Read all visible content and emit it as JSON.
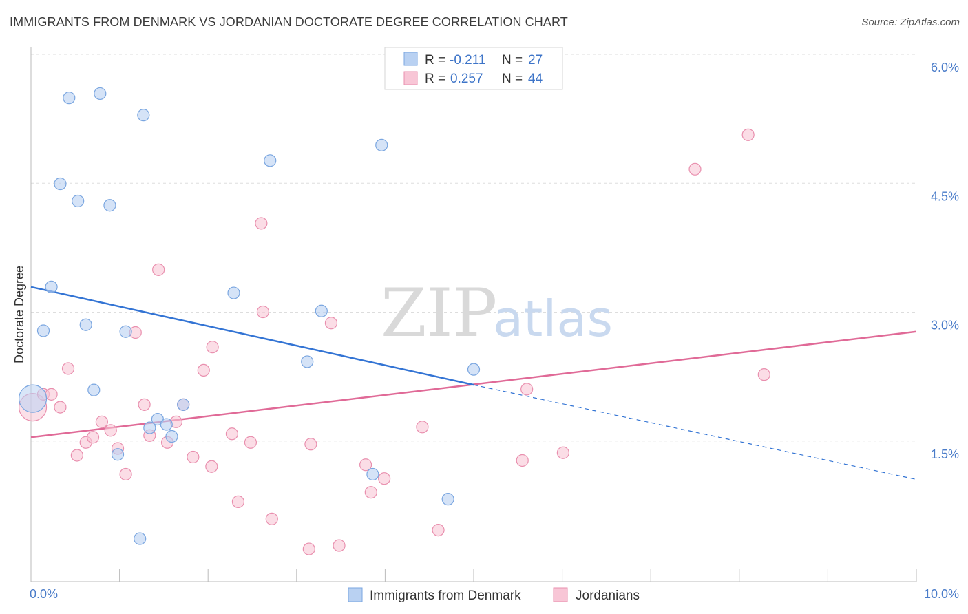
{
  "title": "IMMIGRANTS FROM DENMARK VS JORDANIAN DOCTORATE DEGREE CORRELATION CHART",
  "source": "Source: ZipAtlas.com",
  "watermark": {
    "zip": "ZIP",
    "atlas": "atlas"
  },
  "colors": {
    "blue_fill": "#b9d1f2",
    "blue_stroke": "#7aa6e0",
    "blue_line": "#3374d4",
    "pink_fill": "#f8c6d6",
    "pink_stroke": "#e98fae",
    "pink_line": "#e06a97",
    "grid": "#dddddd",
    "axis": "#bbbbbb"
  },
  "legend": {
    "rows": [
      {
        "r_label": "R =",
        "r_value": "-0.211",
        "n_label": "N =",
        "n_value": "27"
      },
      {
        "r_label": "R =",
        "r_value": "0.257",
        "n_label": "N =",
        "n_value": "44"
      }
    ]
  },
  "chart_data": {
    "type": "scatter",
    "title": "IMMIGRANTS FROM DENMARK VS JORDANIAN DOCTORATE DEGREE CORRELATION CHART",
    "xlabel": "",
    "ylabel": "Doctorate Degree",
    "xlim": [
      0,
      10
    ],
    "ylim": [
      0,
      6.0
    ],
    "x_tick_labels": [
      "0.0%",
      "10.0%"
    ],
    "y_ticks": [
      1.5,
      3.0,
      4.5,
      6.0
    ],
    "y_tick_labels": [
      "1.5%",
      "3.0%",
      "4.5%",
      "6.0%"
    ],
    "grid": true,
    "legend_position": "top-center",
    "series": [
      {
        "name": "Immigrants from Denmark",
        "r": -0.211,
        "n": 27,
        "trend": {
          "x0": 0.0,
          "y0": 3.43,
          "x1": 5.0,
          "y1": 2.29,
          "dash_x1": 10.0,
          "dash_y1": 1.19
        },
        "points": [
          {
            "x": 0.02,
            "y": 2.13,
            "big": true
          },
          {
            "x": 0.14,
            "y": 2.92
          },
          {
            "x": 0.23,
            "y": 3.43
          },
          {
            "x": 0.33,
            "y": 4.63
          },
          {
            "x": 0.43,
            "y": 5.63
          },
          {
            "x": 0.53,
            "y": 4.43
          },
          {
            "x": 0.62,
            "y": 2.99
          },
          {
            "x": 0.71,
            "y": 2.23
          },
          {
            "x": 0.78,
            "y": 5.68
          },
          {
            "x": 0.89,
            "y": 4.38
          },
          {
            "x": 0.98,
            "y": 1.48
          },
          {
            "x": 1.07,
            "y": 2.91
          },
          {
            "x": 1.27,
            "y": 5.43
          },
          {
            "x": 1.23,
            "y": 0.5
          },
          {
            "x": 1.34,
            "y": 1.79
          },
          {
            "x": 1.43,
            "y": 1.89
          },
          {
            "x": 1.53,
            "y": 1.83
          },
          {
            "x": 1.59,
            "y": 1.69
          },
          {
            "x": 1.72,
            "y": 2.06
          },
          {
            "x": 2.29,
            "y": 3.36
          },
          {
            "x": 2.7,
            "y": 4.9
          },
          {
            "x": 3.28,
            "y": 3.15
          },
          {
            "x": 3.12,
            "y": 2.56
          },
          {
            "x": 3.86,
            "y": 1.25
          },
          {
            "x": 3.96,
            "y": 5.08
          },
          {
            "x": 4.71,
            "y": 0.96
          },
          {
            "x": 5.0,
            "y": 2.47
          }
        ]
      },
      {
        "name": "Jordanians",
        "r": 0.257,
        "n": 44,
        "trend": {
          "x0": 0.0,
          "y0": 1.68,
          "x1": 10.0,
          "y1": 2.91
        },
        "points": [
          {
            "x": 0.02,
            "y": 2.03,
            "big": true
          },
          {
            "x": 0.14,
            "y": 2.18
          },
          {
            "x": 0.23,
            "y": 2.18
          },
          {
            "x": 0.33,
            "y": 2.03
          },
          {
            "x": 0.42,
            "y": 2.48
          },
          {
            "x": 0.52,
            "y": 1.47
          },
          {
            "x": 0.62,
            "y": 1.62
          },
          {
            "x": 0.7,
            "y": 1.68
          },
          {
            "x": 0.8,
            "y": 1.86
          },
          {
            "x": 0.9,
            "y": 1.76
          },
          {
            "x": 0.98,
            "y": 1.55
          },
          {
            "x": 1.07,
            "y": 1.25
          },
          {
            "x": 1.18,
            "y": 2.9
          },
          {
            "x": 1.28,
            "y": 2.06
          },
          {
            "x": 1.34,
            "y": 1.7
          },
          {
            "x": 1.44,
            "y": 3.63
          },
          {
            "x": 1.54,
            "y": 1.62
          },
          {
            "x": 1.64,
            "y": 1.86
          },
          {
            "x": 1.72,
            "y": 2.06
          },
          {
            "x": 1.83,
            "y": 1.45
          },
          {
            "x": 1.95,
            "y": 2.46
          },
          {
            "x": 2.05,
            "y": 2.73
          },
          {
            "x": 2.04,
            "y": 1.34
          },
          {
            "x": 2.27,
            "y": 1.72
          },
          {
            "x": 2.34,
            "y": 0.93
          },
          {
            "x": 2.48,
            "y": 1.62
          },
          {
            "x": 2.6,
            "y": 4.17
          },
          {
            "x": 2.62,
            "y": 3.14
          },
          {
            "x": 2.72,
            "y": 0.73
          },
          {
            "x": 3.14,
            "y": 0.38
          },
          {
            "x": 3.16,
            "y": 1.6
          },
          {
            "x": 3.39,
            "y": 3.01
          },
          {
            "x": 3.48,
            "y": 0.42
          },
          {
            "x": 3.78,
            "y": 1.36
          },
          {
            "x": 3.84,
            "y": 1.04
          },
          {
            "x": 3.99,
            "y": 1.2
          },
          {
            "x": 4.42,
            "y": 1.8
          },
          {
            "x": 4.6,
            "y": 0.6
          },
          {
            "x": 5.55,
            "y": 1.41
          },
          {
            "x": 5.6,
            "y": 2.24
          },
          {
            "x": 6.01,
            "y": 1.5
          },
          {
            "x": 7.5,
            "y": 4.8
          },
          {
            "x": 8.1,
            "y": 5.2
          },
          {
            "x": 8.28,
            "y": 2.41
          }
        ]
      }
    ]
  }
}
